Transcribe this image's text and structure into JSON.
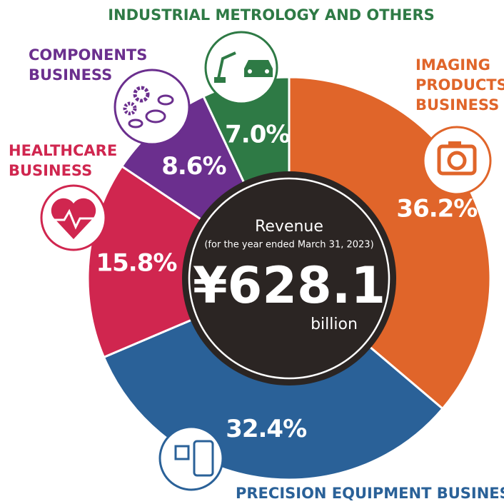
{
  "chart_data": {
    "type": "donut",
    "categories": [
      "IMAGING PRODUCTS BUSINESS",
      "PRECISION EQUIPMENT BUSINESS",
      "HEALTHCARE BUSINESS",
      "COMPONENTS BUSINESS",
      "INDUSTRIAL METROLOGY AND OTHERS"
    ],
    "values": [
      36.2,
      32.4,
      15.8,
      8.6,
      7.0
    ],
    "value_labels": [
      "36.2%",
      "32.4%",
      "15.8%",
      "8.6%",
      "7.0%"
    ],
    "colors": [
      "#e0652a",
      "#2a6198",
      "#d0264f",
      "#6b2f8e",
      "#2e7a45"
    ],
    "center_title": "Revenue",
    "center_note": "(for the year ended March 31, 2023)",
    "center_value": "¥628.1",
    "center_unit": "billion"
  }
}
